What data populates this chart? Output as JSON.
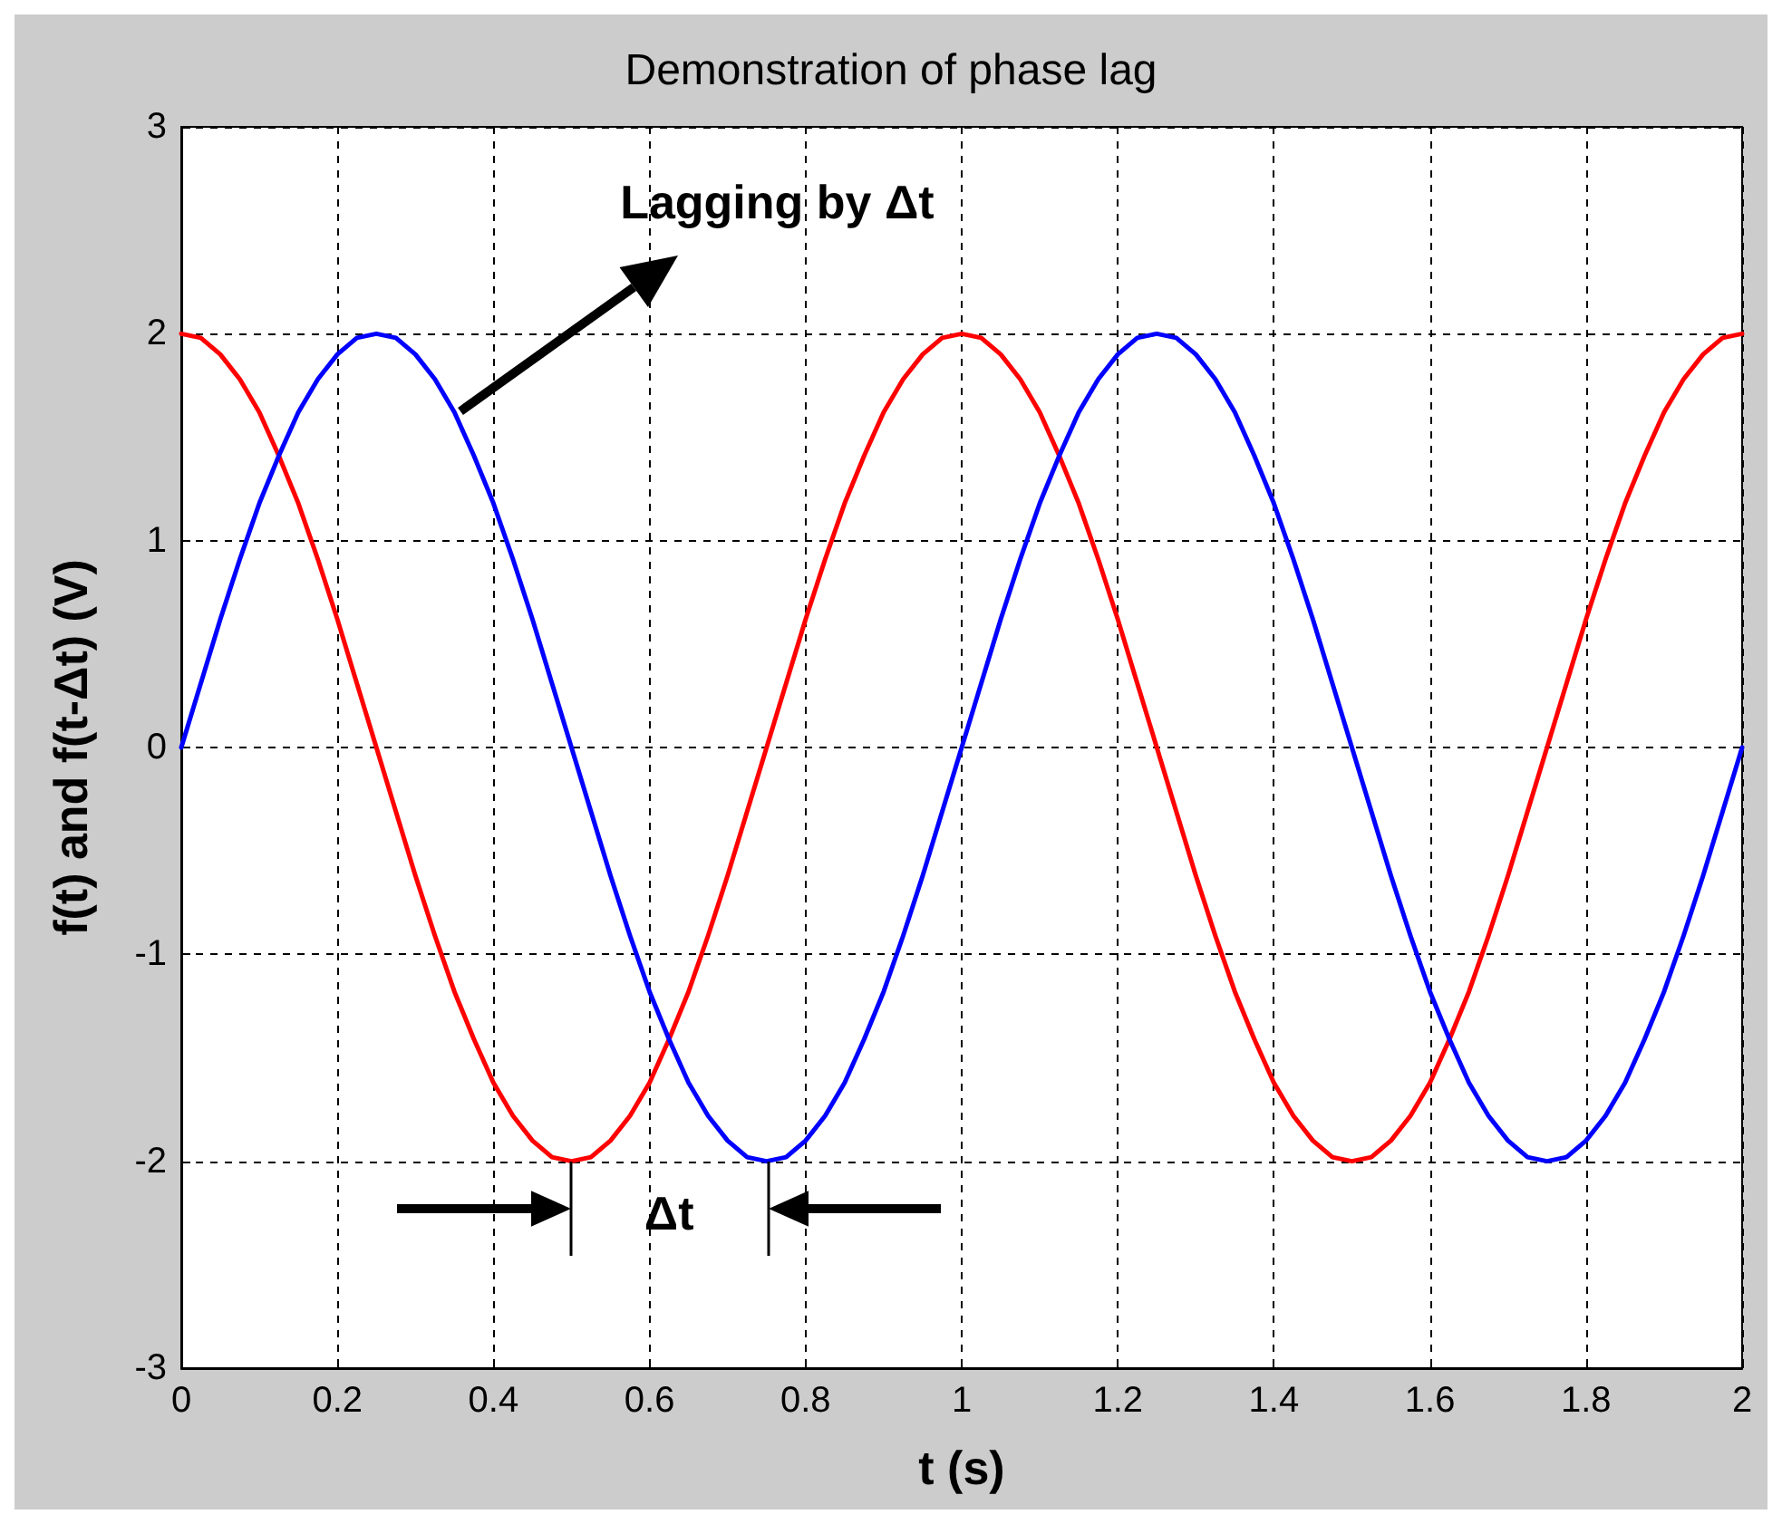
{
  "chart_data": {
    "type": "line",
    "title": "Demonstration of phase lag",
    "xlabel": "t (s)",
    "ylabel": "f(t) and f(t-Δt) (V)",
    "x": [
      0,
      0.025,
      0.05,
      0.075,
      0.1,
      0.125,
      0.15,
      0.175,
      0.2,
      0.225,
      0.25,
      0.275,
      0.3,
      0.325,
      0.35,
      0.375,
      0.4,
      0.425,
      0.45,
      0.475,
      0.5,
      0.525,
      0.55,
      0.575,
      0.6,
      0.625,
      0.65,
      0.675,
      0.7,
      0.725,
      0.75,
      0.775,
      0.8,
      0.825,
      0.85,
      0.875,
      0.9,
      0.925,
      0.95,
      0.975,
      1,
      1.025,
      1.05,
      1.075,
      1.1,
      1.125,
      1.15,
      1.175,
      1.2,
      1.225,
      1.25,
      1.275,
      1.3,
      1.325,
      1.35,
      1.375,
      1.4,
      1.425,
      1.45,
      1.475,
      1.5,
      1.525,
      1.55,
      1.575,
      1.6,
      1.625,
      1.65,
      1.675,
      1.7,
      1.725,
      1.75,
      1.775,
      1.8,
      1.825,
      1.85,
      1.875,
      1.9,
      1.925,
      1.95,
      1.975,
      2
    ],
    "series": [
      {
        "color": "#ff0000",
        "values": [
          2,
          1.98,
          1.9,
          1.78,
          1.62,
          1.41,
          1.18,
          0.91,
          0.62,
          0.31,
          0,
          -0.31,
          -0.62,
          -0.91,
          -1.18,
          -1.41,
          -1.62,
          -1.78,
          -1.9,
          -1.98,
          -2,
          -1.98,
          -1.9,
          -1.78,
          -1.62,
          -1.41,
          -1.18,
          -0.91,
          -0.62,
          -0.31,
          0,
          0.31,
          0.62,
          0.91,
          1.18,
          1.41,
          1.62,
          1.78,
          1.9,
          1.98,
          2,
          1.98,
          1.9,
          1.78,
          1.62,
          1.41,
          1.18,
          0.91,
          0.62,
          0.31,
          0,
          -0.31,
          -0.62,
          -0.91,
          -1.18,
          -1.41,
          -1.62,
          -1.78,
          -1.9,
          -1.98,
          -2,
          -1.98,
          -1.9,
          -1.78,
          -1.62,
          -1.41,
          -1.18,
          -0.91,
          -0.62,
          -0.31,
          0,
          0.31,
          0.62,
          0.91,
          1.18,
          1.41,
          1.62,
          1.78,
          1.9,
          1.98,
          2
        ]
      },
      {
        "color": "#0000ff",
        "values": [
          0,
          0.31,
          0.62,
          0.91,
          1.18,
          1.41,
          1.62,
          1.78,
          1.9,
          1.98,
          2,
          1.98,
          1.9,
          1.78,
          1.62,
          1.41,
          1.18,
          0.91,
          0.62,
          0.31,
          0,
          -0.31,
          -0.62,
          -0.91,
          -1.18,
          -1.41,
          -1.62,
          -1.78,
          -1.9,
          -1.98,
          -2,
          -1.98,
          -1.9,
          -1.78,
          -1.62,
          -1.41,
          -1.18,
          -0.91,
          -0.62,
          -0.31,
          0,
          0.31,
          0.62,
          0.91,
          1.18,
          1.41,
          1.62,
          1.78,
          1.9,
          1.98,
          2,
          1.98,
          1.9,
          1.78,
          1.62,
          1.41,
          1.18,
          0.91,
          0.62,
          0.31,
          0,
          -0.31,
          -0.62,
          -0.91,
          -1.18,
          -1.41,
          -1.62,
          -1.78,
          -1.9,
          -1.98,
          -2,
          -1.98,
          -1.9,
          -1.78,
          -1.62,
          -1.41,
          -1.18,
          -0.91,
          -0.62,
          -0.31,
          0
        ]
      }
    ],
    "xlim": [
      0,
      2
    ],
    "xticks": [
      0,
      0.2,
      0.4,
      0.6,
      0.8,
      1,
      1.2,
      1.4,
      1.6,
      1.8,
      2
    ],
    "ylim": [
      -3,
      3
    ],
    "yticks": [
      -3,
      -2,
      -1,
      0,
      1,
      2,
      3
    ],
    "grid": true,
    "marker": "none",
    "line_style": "solid",
    "annotations": [
      {
        "text": "Lagging by Δt",
        "x": 0.35,
        "y": 1.62
      },
      "Δt"
    ]
  }
}
